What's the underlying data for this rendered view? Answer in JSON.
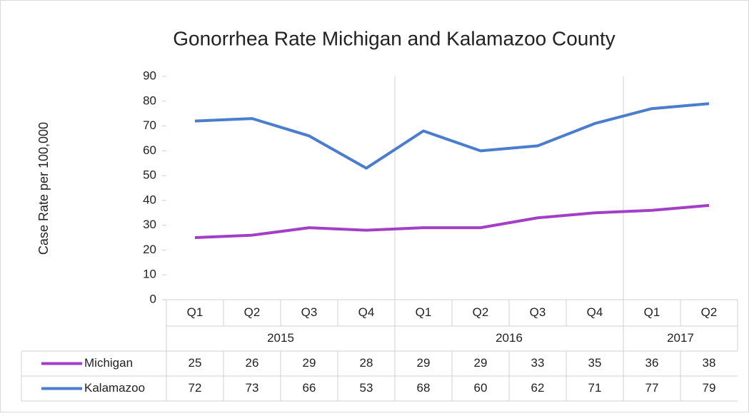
{
  "chart_data": {
    "type": "line",
    "title": "Gonorrhea Rate Michigan and Kalamazoo County",
    "y_label": "Case Rate per 100,000",
    "category_groups": [
      {
        "name": "2015",
        "categories": [
          "Q1",
          "Q2",
          "Q3",
          "Q4"
        ]
      },
      {
        "name": "2016",
        "categories": [
          "Q1",
          "Q2",
          "Q3",
          "Q4"
        ]
      },
      {
        "name": "2017",
        "categories": [
          "Q1",
          "Q2"
        ]
      }
    ],
    "series": [
      {
        "name": "Michigan",
        "color": "#a33fc6",
        "values": [
          25,
          26,
          29,
          28,
          29,
          29,
          33,
          35,
          36,
          38
        ]
      },
      {
        "name": "Kalamazoo",
        "color": "#4a7dcd",
        "values": [
          72,
          73,
          66,
          53,
          68,
          60,
          62,
          71,
          77,
          79
        ]
      }
    ],
    "ylim": [
      0,
      90
    ],
    "yticks": [
      0,
      10,
      20,
      30,
      40,
      50,
      60,
      70,
      80,
      90
    ],
    "data_table": true,
    "group_gridlines": true
  }
}
